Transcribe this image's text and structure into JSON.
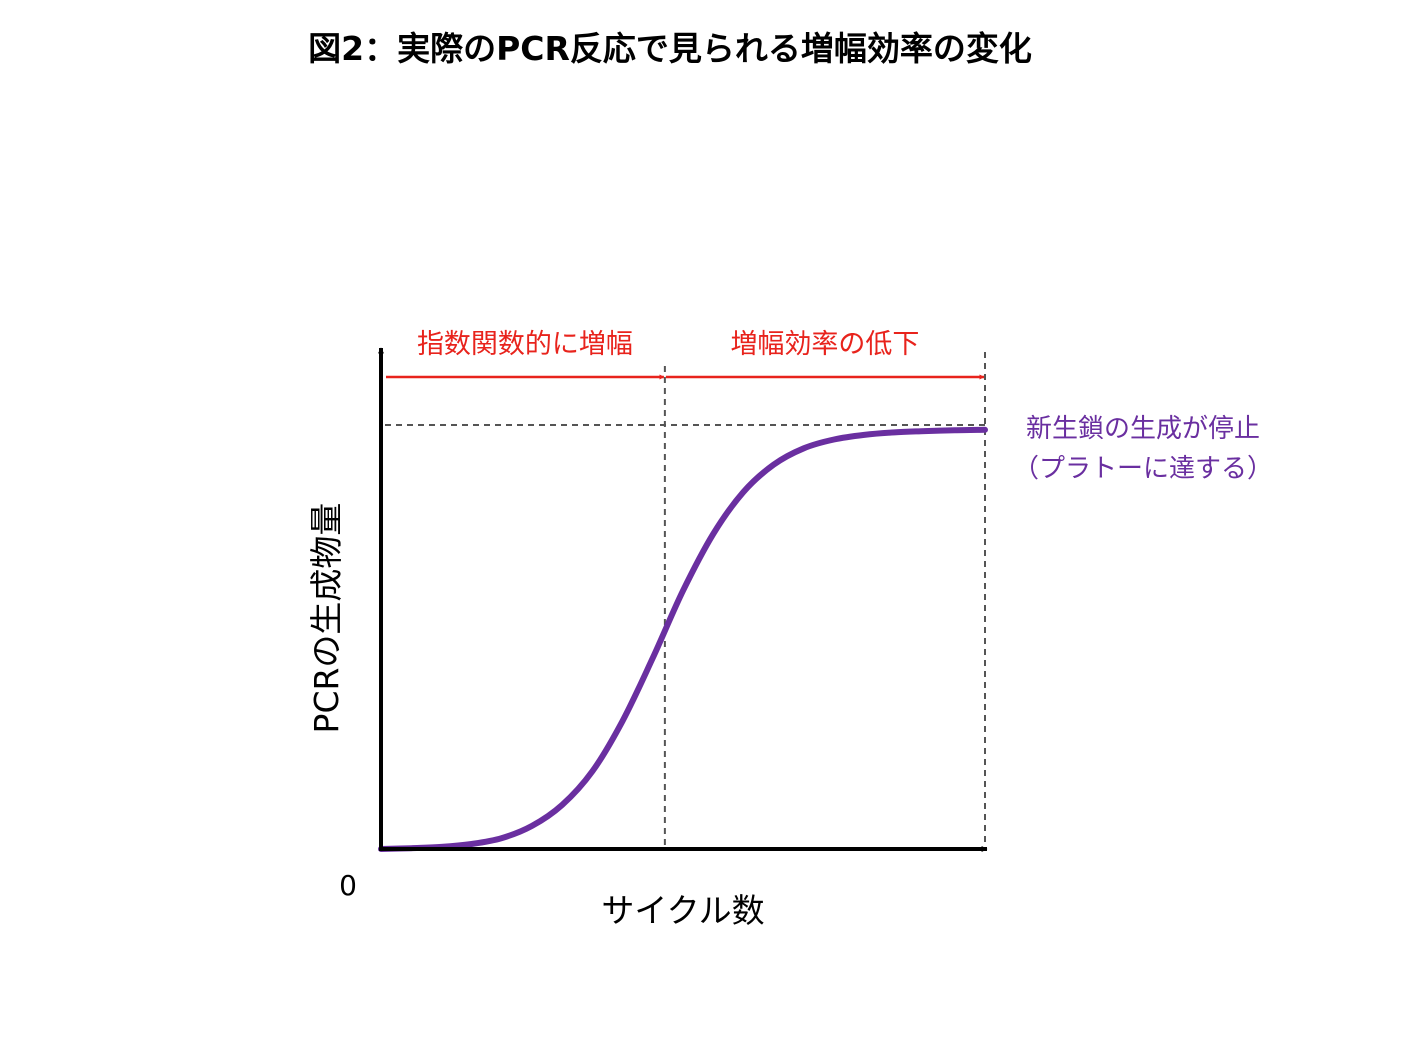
{
  "title": "図2：実際のPCR反応で見られる増幅効率の変化",
  "colors": {
    "curve": "#6a2fa0",
    "phase": "#e8231c",
    "axis": "#000000",
    "guide": "#555555",
    "plateau_text": "#6a2fa0"
  },
  "chart_data": {
    "type": "line",
    "title": "図2：実際のPCR反応で見られる増幅効率の変化",
    "xlabel": "サイクル数",
    "ylabel": "PCRの生成物量",
    "origin_label": "0",
    "xlim": [
      0,
      100
    ],
    "ylim": [
      0,
      100
    ],
    "grid": false,
    "series": [
      {
        "x": [
          0,
          5,
          10,
          15,
          20,
          25,
          30,
          35,
          40,
          45,
          50,
          55,
          60,
          65,
          70,
          75,
          80,
          85,
          90,
          95,
          100
        ],
        "y": [
          0,
          0.2,
          0.5,
          1.2,
          2.6,
          5.5,
          10.5,
          18.5,
          30.5,
          45.5,
          61.5,
          75,
          85,
          91.5,
          95.4,
          97.5,
          98.6,
          99.2,
          99.5,
          99.7,
          99.8
        ]
      }
    ],
    "plateau_level": 100,
    "phase_boundary_x": 47,
    "phases": [
      {
        "label": "指数関数的に増幅",
        "x_start": 0,
        "x_end": 47
      },
      {
        "label": "増幅効率の低下",
        "x_start": 47,
        "x_end": 100
      }
    ],
    "annotations": [
      {
        "line1": "新生鎖の生成が停止",
        "line2": "（プラトーに達する）"
      }
    ]
  }
}
